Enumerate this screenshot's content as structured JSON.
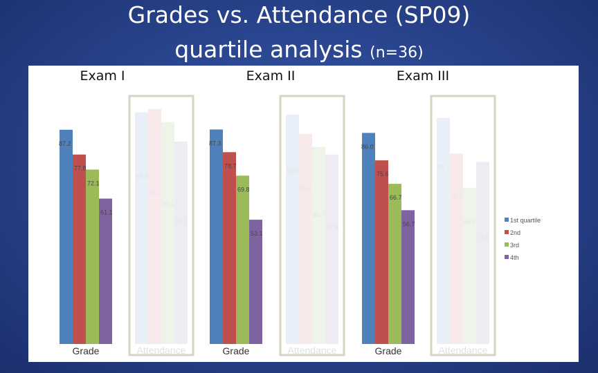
{
  "title": {
    "line1": "Grades vs. Attendance (SP09)",
    "line2_main": "quartile analysis",
    "line2_small": "(n=36)"
  },
  "chart_data": {
    "type": "bar",
    "groups": [
      {
        "exam": "Exam I",
        "grade": [
          87.2,
          77.8,
          72.1,
          61.1
        ],
        "attendance": [
          93.8,
          95.1,
          90.1,
          82.7
        ]
      },
      {
        "exam": "Exam II",
        "grade": [
          87.3,
          78.7,
          69.8,
          53.1
        ],
        "attendance": [
          92.9,
          85.7,
          80.7,
          77.8
        ]
      },
      {
        "exam": "Exam III",
        "grade": [
          86.0,
          75.6,
          66.7,
          56.7
        ],
        "attendance": [
          91.7,
          78.2,
          65.2,
          75.0
        ]
      }
    ],
    "subgroup_labels": {
      "grade": "Grade",
      "attendance": "Attendance"
    },
    "legend": [
      "1st quartile",
      "2nd",
      "3rd",
      "4th"
    ],
    "legend_position": "right",
    "colors": [
      "#4f81bd",
      "#c0504d",
      "#9bbb59",
      "#8064a2"
    ],
    "faded_colors": [
      "#e9eff8",
      "#f8eaea",
      "#eff4e8",
      "#eeebf3"
    ]
  }
}
